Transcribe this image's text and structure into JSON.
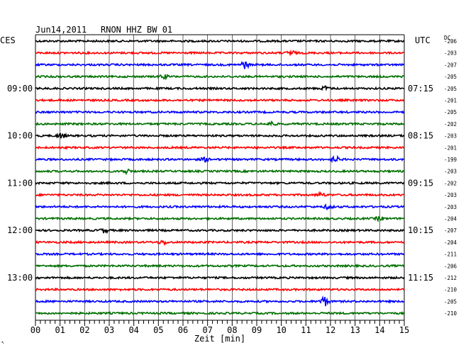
{
  "header": {
    "date": "Jun14,2011",
    "station": "RNON HHZ BW 01",
    "left_zone": "CES",
    "right_zone": "UTC",
    "dc_label": "DC"
  },
  "chart_data": {
    "type": "line",
    "xlabel": "Zeit [min]",
    "xlim": [
      0,
      15
    ],
    "x_ticks": [
      "00",
      "01",
      "02",
      "03",
      "04",
      "05",
      "06",
      "07",
      "08",
      "09",
      "10",
      "11",
      "12",
      "13",
      "14",
      "15"
    ],
    "grid": true,
    "trace_colors": [
      "#000000",
      "#ff0000",
      "#0000ff",
      "#007000"
    ],
    "left_hour_labels": [
      {
        "row": 4,
        "text": "09:00"
      },
      {
        "row": 8,
        "text": "10:00"
      },
      {
        "row": 12,
        "text": "11:00"
      },
      {
        "row": 16,
        "text": "12:00"
      },
      {
        "row": 20,
        "text": "13:00"
      }
    ],
    "right_hour_labels": [
      {
        "row": 4,
        "text": "07:15"
      },
      {
        "row": 8,
        "text": "08:15"
      },
      {
        "row": 12,
        "text": "09:15"
      },
      {
        "row": 16,
        "text": "10:15"
      },
      {
        "row": 20,
        "text": "11:15"
      }
    ],
    "dc_values": [
      "-206",
      "-203",
      "-207",
      "-205",
      "-205",
      "-201",
      "-205",
      "-202",
      "-203",
      "-201",
      "-199",
      "-203",
      "-202",
      "-203",
      "-203",
      "-204",
      "-207",
      "-204",
      "-211",
      "-206",
      "-212",
      "-210",
      "-205",
      "-210"
    ],
    "series": [
      {
        "row": 0,
        "events": []
      },
      {
        "row": 1,
        "events": [
          {
            "t": 10.4,
            "amp": 1.6
          }
        ]
      },
      {
        "row": 2,
        "events": [
          {
            "t": 8.5,
            "amp": 2.4
          }
        ]
      },
      {
        "row": 3,
        "events": [
          {
            "t": 5.2,
            "amp": 1.4
          }
        ]
      },
      {
        "row": 4,
        "events": [
          {
            "t": 11.8,
            "amp": 1.3
          }
        ]
      },
      {
        "row": 5,
        "events": []
      },
      {
        "row": 6,
        "events": []
      },
      {
        "row": 7,
        "events": [
          {
            "t": 9.6,
            "amp": 1.3
          }
        ]
      },
      {
        "row": 8,
        "events": [
          {
            "t": 1.05,
            "amp": 1.6
          }
        ]
      },
      {
        "row": 9,
        "events": []
      },
      {
        "row": 10,
        "events": [
          {
            "t": 12.2,
            "amp": 1.8
          },
          {
            "t": 6.9,
            "amp": 1.2
          }
        ]
      },
      {
        "row": 11,
        "events": [
          {
            "t": 3.7,
            "amp": 1.3
          }
        ]
      },
      {
        "row": 12,
        "events": []
      },
      {
        "row": 13,
        "events": [
          {
            "t": 11.6,
            "amp": 1.3
          }
        ]
      },
      {
        "row": 14,
        "events": [
          {
            "t": 11.9,
            "amp": 1.3
          }
        ]
      },
      {
        "row": 15,
        "events": [
          {
            "t": 14.0,
            "amp": 1.2
          }
        ]
      },
      {
        "row": 16,
        "events": [
          {
            "t": 2.8,
            "amp": 1.4
          }
        ]
      },
      {
        "row": 17,
        "events": [
          {
            "t": 5.2,
            "amp": 1.3
          }
        ]
      },
      {
        "row": 18,
        "events": []
      },
      {
        "row": 19,
        "events": []
      },
      {
        "row": 20,
        "events": []
      },
      {
        "row": 21,
        "events": []
      },
      {
        "row": 22,
        "events": [
          {
            "t": 11.75,
            "amp": 3.2
          }
        ]
      },
      {
        "row": 23,
        "events": []
      }
    ]
  }
}
